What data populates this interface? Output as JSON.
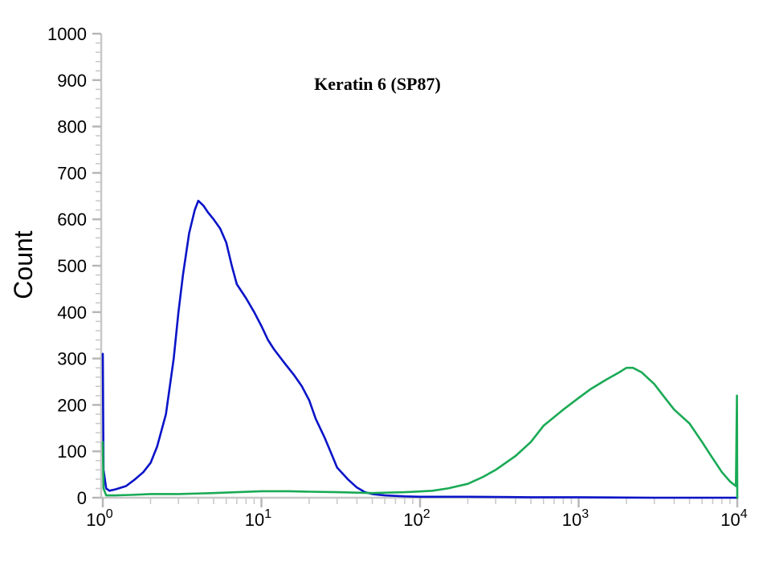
{
  "chart_data": {
    "type": "line",
    "title": "Keratin 6 (SP87)",
    "xlabel": "",
    "ylabel": "Count",
    "x_scale": "log",
    "xlim": [
      1,
      10000
    ],
    "ylim": [
      0,
      1000
    ],
    "x_ticks": [
      {
        "value": 1,
        "base": "10",
        "exp": "0"
      },
      {
        "value": 10,
        "base": "10",
        "exp": "1"
      },
      {
        "value": 100,
        "base": "10",
        "exp": "2"
      },
      {
        "value": 1000,
        "base": "10",
        "exp": "3"
      },
      {
        "value": 10000,
        "base": "10",
        "exp": "4"
      }
    ],
    "y_ticks": [
      0,
      100,
      200,
      300,
      400,
      500,
      600,
      700,
      800,
      900,
      1000
    ],
    "grid": false,
    "legend": "none",
    "series": [
      {
        "color": "#0a14c8",
        "x": [
          1.0,
          1.01,
          1.05,
          1.1,
          1.2,
          1.4,
          1.6,
          1.8,
          2.0,
          2.2,
          2.5,
          2.8,
          3.0,
          3.2,
          3.5,
          3.8,
          4.0,
          4.3,
          4.6,
          5.0,
          5.5,
          6.0,
          6.5,
          7.0,
          8.0,
          9.0,
          10.0,
          11.0,
          12.0,
          14.0,
          16.0,
          18.0,
          20.0,
          22.0,
          25.0,
          28.0,
          30.0,
          35.0,
          40.0,
          45.0,
          50.0,
          60.0,
          80.0,
          100.0,
          200.0,
          500.0,
          1000.0,
          3000.0,
          10000.0
        ],
        "y": [
          310,
          60,
          20,
          15,
          18,
          25,
          40,
          55,
          75,
          110,
          180,
          300,
          400,
          480,
          570,
          620,
          640,
          630,
          615,
          600,
          580,
          550,
          500,
          460,
          430,
          400,
          370,
          340,
          320,
          290,
          265,
          240,
          210,
          170,
          130,
          90,
          65,
          40,
          22,
          12,
          8,
          5,
          3,
          2,
          2,
          1,
          1,
          0,
          0
        ]
      },
      {
        "color": "#1aaa55",
        "x": [
          1.0,
          1.01,
          1.05,
          1.2,
          1.5,
          2.0,
          3.0,
          5.0,
          7.0,
          10.0,
          15.0,
          20.0,
          30.0,
          50.0,
          80.0,
          120.0,
          150.0,
          200.0,
          250.0,
          300.0,
          400.0,
          500.0,
          600.0,
          800.0,
          1000.0,
          1200.0,
          1500.0,
          1800.0,
          2000.0,
          2200.0,
          2500.0,
          3000.0,
          3500.0,
          4000.0,
          5000.0,
          6000.0,
          7000.0,
          8000.0,
          9000.0,
          9800.0,
          9950.0,
          10000.0
        ],
        "y": [
          120,
          20,
          5,
          5,
          6,
          8,
          8,
          10,
          12,
          14,
          14,
          13,
          12,
          10,
          12,
          15,
          20,
          30,
          45,
          60,
          90,
          120,
          155,
          190,
          215,
          235,
          255,
          270,
          280,
          280,
          270,
          245,
          215,
          190,
          160,
          120,
          85,
          55,
          35,
          25,
          220,
          0
        ]
      }
    ]
  }
}
